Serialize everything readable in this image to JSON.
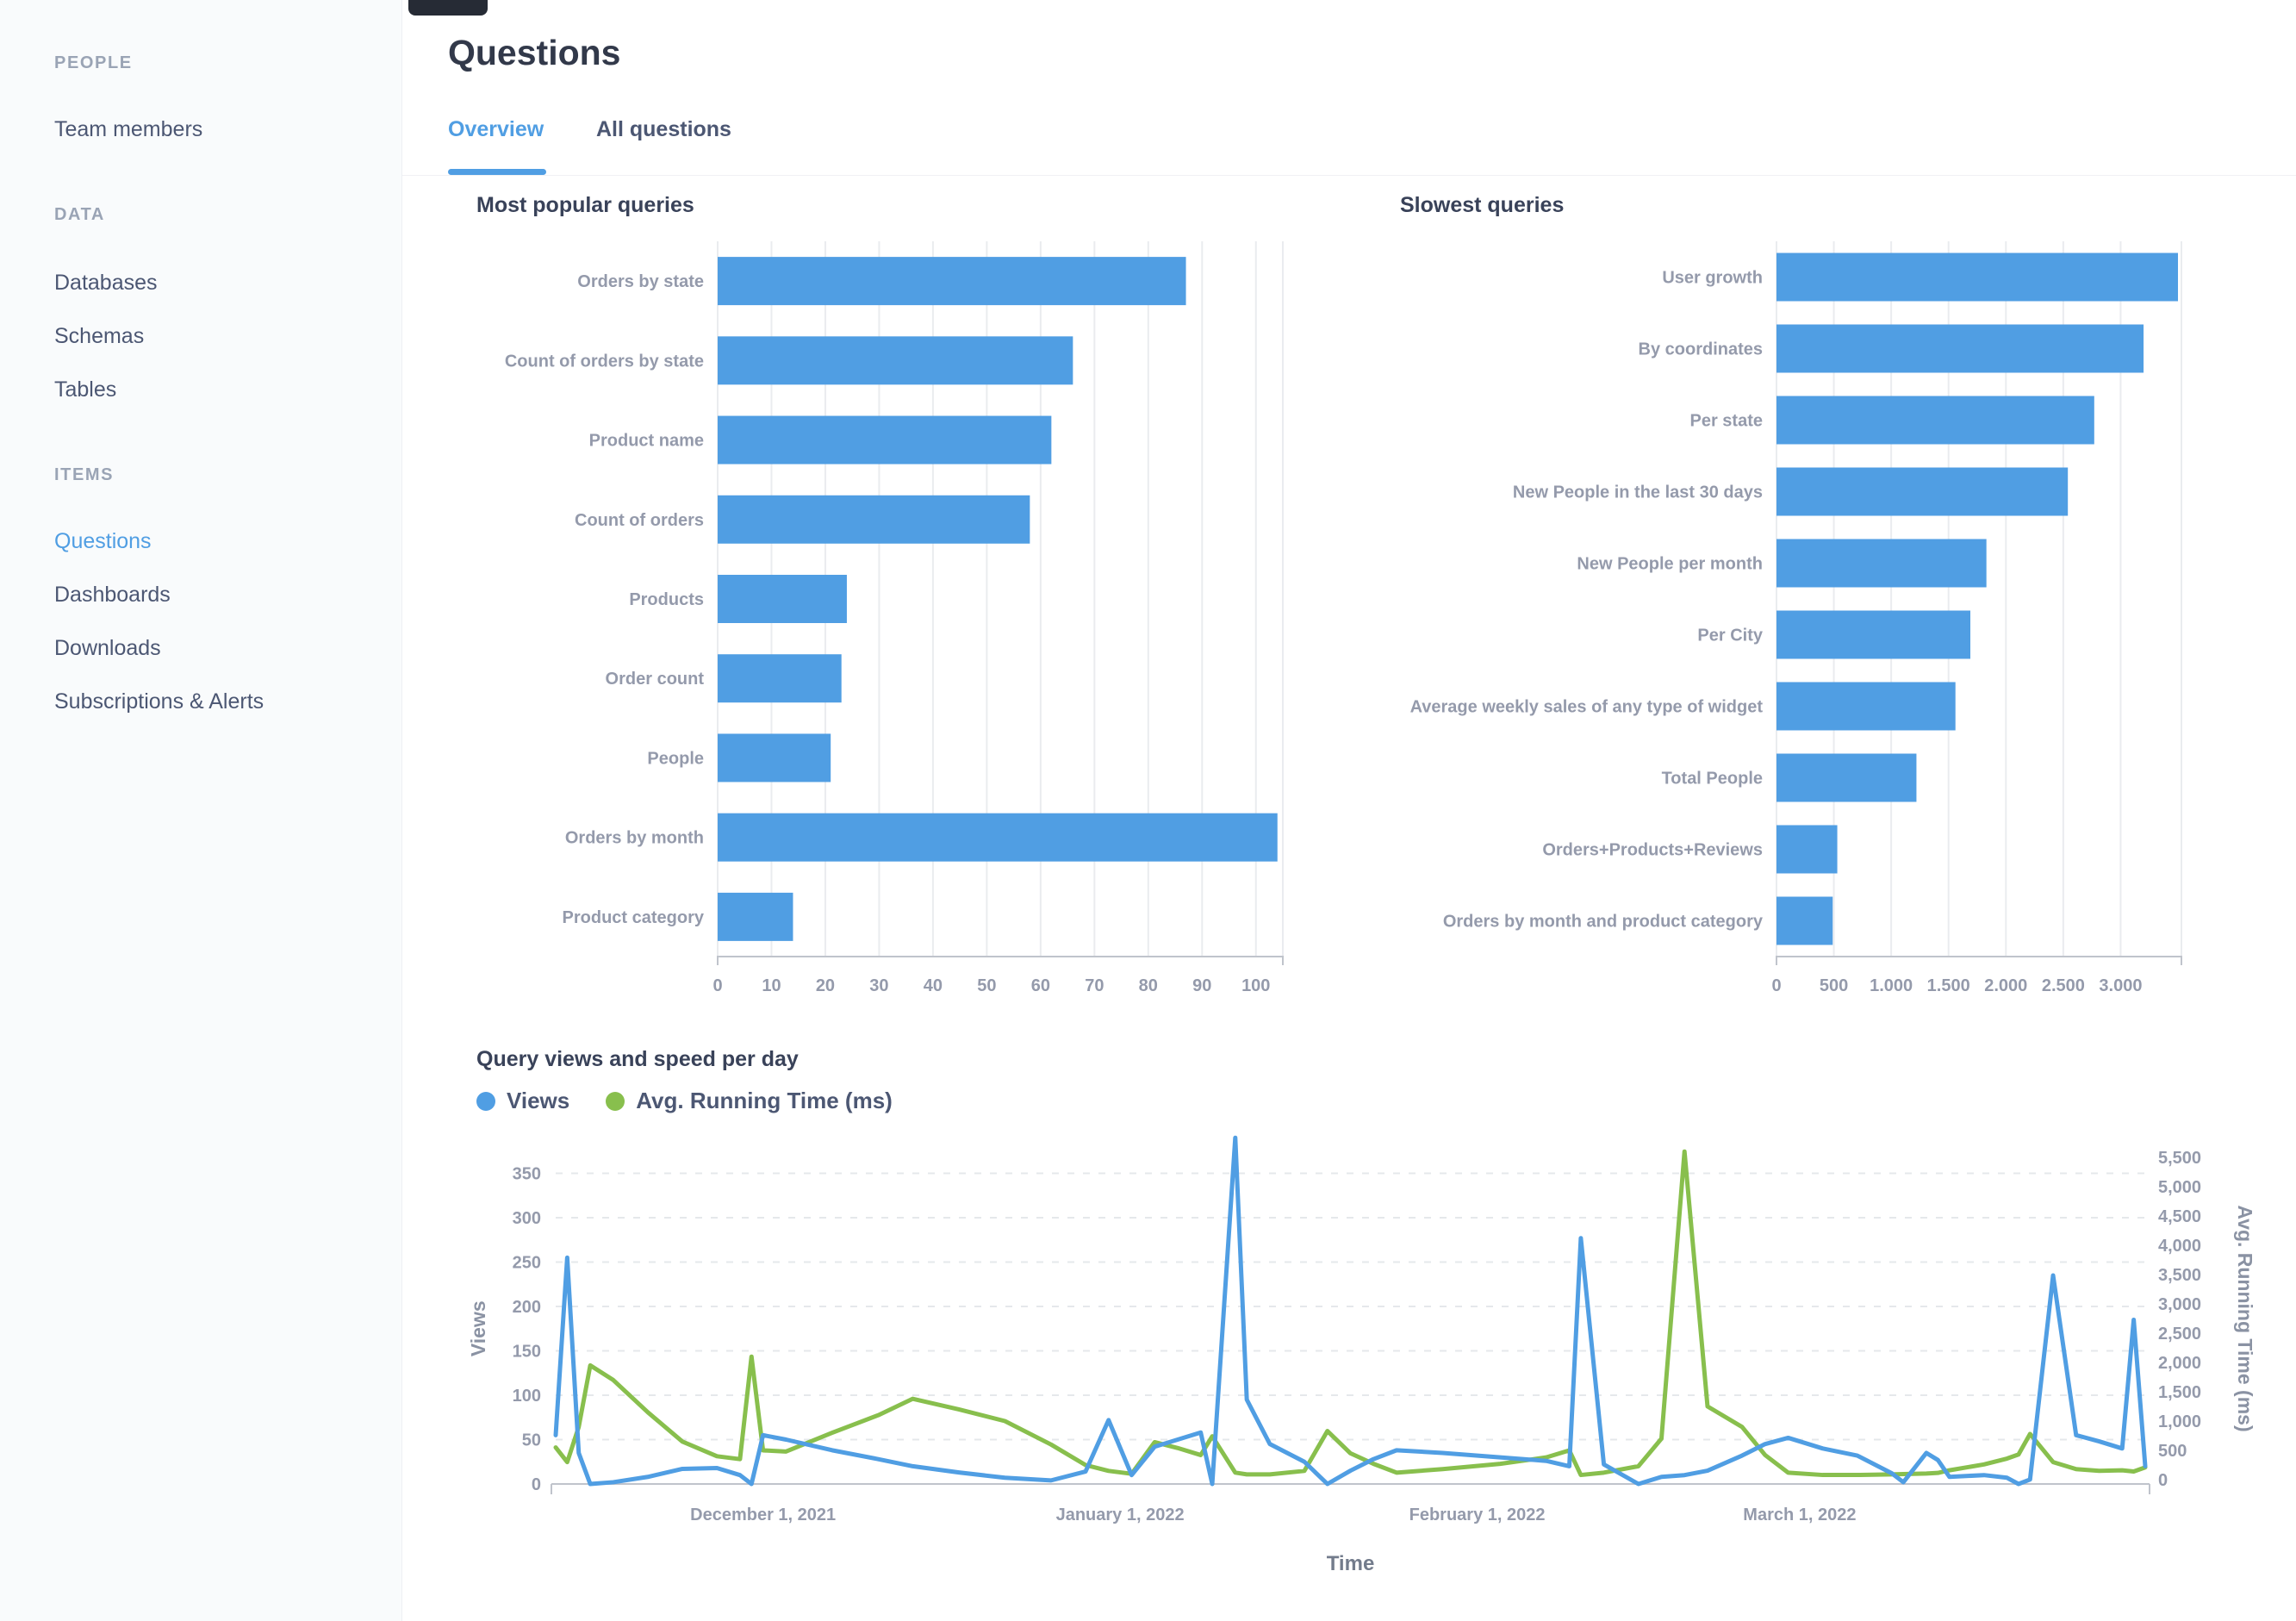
{
  "sidebar": {
    "sections": [
      {
        "title": "PEOPLE",
        "items": [
          {
            "label": "Team members",
            "active": false
          }
        ]
      },
      {
        "title": "DATA",
        "items": [
          {
            "label": "Databases",
            "active": false
          },
          {
            "label": "Schemas",
            "active": false
          },
          {
            "label": "Tables",
            "active": false
          }
        ]
      },
      {
        "title": "ITEMS",
        "items": [
          {
            "label": "Questions",
            "active": true
          },
          {
            "label": "Dashboards",
            "active": false
          },
          {
            "label": "Downloads",
            "active": false
          },
          {
            "label": "Subscriptions & Alerts",
            "active": false
          }
        ]
      }
    ]
  },
  "header": {
    "title": "Questions"
  },
  "tabs": [
    {
      "label": "Overview",
      "active": true
    },
    {
      "label": "All questions",
      "active": false
    }
  ],
  "colors": {
    "brand_blue": "#509EE3",
    "green": "#88BF4D",
    "label_gray": "#949AAB",
    "text_dark": "#4C5773",
    "grid": "#EAECEF",
    "axis": "#C0C4CC"
  },
  "chart_data": [
    {
      "type": "bar",
      "orientation": "horizontal",
      "title": "Most popular queries",
      "categories": [
        "Orders by state",
        "Count of orders by state",
        "Product name",
        "Count of orders",
        "Products",
        "Order count",
        "People",
        "Orders by month",
        "Product category"
      ],
      "values": [
        87,
        66,
        62,
        58,
        24,
        23,
        21,
        104,
        14
      ],
      "xlim": [
        0,
        105
      ],
      "xticks": [
        0,
        10,
        20,
        30,
        40,
        50,
        60,
        70,
        80,
        90,
        100
      ],
      "xtick_labels": [
        "0",
        "10",
        "20",
        "30",
        "40",
        "50",
        "60",
        "70",
        "80",
        "90",
        "100"
      ],
      "grid": true,
      "bar_color": "#509EE3"
    },
    {
      "type": "bar",
      "orientation": "horizontal",
      "title": "Slowest queries",
      "categories": [
        "User growth",
        "By coordinates",
        "Per state",
        "New People in the last 30 days",
        "New People per month",
        "Per City",
        "Average weekly sales of any type of widget",
        "Total People",
        "Orders+Products+Reviews",
        "Orders by month and product category"
      ],
      "values": [
        3500,
        3200,
        2770,
        2540,
        1830,
        1690,
        1560,
        1220,
        530,
        490
      ],
      "xlim": [
        0,
        3530
      ],
      "xticks": [
        0,
        500,
        1000,
        1500,
        2000,
        2500,
        3000
      ],
      "xtick_labels": [
        "0",
        "500",
        "1,000",
        "1,500",
        "2,000",
        "2,500",
        "3,000"
      ],
      "grid": true,
      "bar_color": "#509EE3"
    },
    {
      "type": "line",
      "title": "Query views and speed per day",
      "xlabel": "Time",
      "ylabel_left": "Views",
      "ylabel_right": "Avg. Running Time (ms)",
      "ylim_left": [
        0,
        350
      ],
      "ylim_right": [
        0,
        5500
      ],
      "yticks_left": [
        "0",
        "50",
        "100",
        "150",
        "200",
        "250",
        "300",
        "350"
      ],
      "yticks_right": [
        "0",
        "500",
        "1,000",
        "1,500",
        "2,000",
        "2,500",
        "3,000",
        "3,500",
        "4,000",
        "4,500",
        "5,000",
        "5,500"
      ],
      "x_tick_labels": [
        "December 1, 2021",
        "January 1, 2022",
        "February 1, 2022",
        "March 1, 2022"
      ],
      "x_tick_dates": [
        "2021-12-01",
        "2022-01-01",
        "2022-02-01",
        "2022-03-01"
      ],
      "legend_position": "top-left",
      "grid": "dashed-horizontal",
      "series": [
        {
          "name": "Views",
          "color": "#509EE3",
          "axis": "left"
        },
        {
          "name": "Avg. Running Time (ms)",
          "color": "#88BF4D",
          "axis": "right"
        }
      ],
      "points": [
        {
          "date": "2021-11-13",
          "views": 55,
          "avg_ms": 550
        },
        {
          "date": "2021-11-14",
          "views": 255,
          "avg_ms": 300
        },
        {
          "date": "2021-11-15",
          "views": 35,
          "avg_ms": 900
        },
        {
          "date": "2021-11-16",
          "views": 0,
          "avg_ms": 1950
        },
        {
          "date": "2021-11-18",
          "views": 2,
          "avg_ms": 1700
        },
        {
          "date": "2021-11-21",
          "views": 8,
          "avg_ms": 1150
        },
        {
          "date": "2021-11-24",
          "views": 17,
          "avg_ms": 650
        },
        {
          "date": "2021-11-27",
          "views": 18,
          "avg_ms": 400
        },
        {
          "date": "2021-11-29",
          "views": 10,
          "avg_ms": 350
        },
        {
          "date": "2021-11-30",
          "views": 0,
          "avg_ms": 2100
        },
        {
          "date": "2021-12-01",
          "views": 55,
          "avg_ms": 500
        },
        {
          "date": "2021-12-03",
          "views": 50,
          "avg_ms": 480
        },
        {
          "date": "2021-12-07",
          "views": 38,
          "avg_ms": 800
        },
        {
          "date": "2021-12-11",
          "views": 28,
          "avg_ms": 1100
        },
        {
          "date": "2021-12-14",
          "views": 20,
          "avg_ms": 1380
        },
        {
          "date": "2021-12-18",
          "views": 13,
          "avg_ms": 1200
        },
        {
          "date": "2021-12-22",
          "views": 7,
          "avg_ms": 1000
        },
        {
          "date": "2021-12-26",
          "views": 4,
          "avg_ms": 600
        },
        {
          "date": "2021-12-29",
          "views": 14,
          "avg_ms": 250
        },
        {
          "date": "2021-12-31",
          "views": 72,
          "avg_ms": 150
        },
        {
          "date": "2022-01-02",
          "views": 10,
          "avg_ms": 100
        },
        {
          "date": "2022-01-04",
          "views": 42,
          "avg_ms": 640
        },
        {
          "date": "2022-01-06",
          "views": 50,
          "avg_ms": 540
        },
        {
          "date": "2022-01-08",
          "views": 58,
          "avg_ms": 420
        },
        {
          "date": "2022-01-09",
          "views": 0,
          "avg_ms": 740
        },
        {
          "date": "2022-01-11",
          "views": 390,
          "avg_ms": 120
        },
        {
          "date": "2022-01-12",
          "views": 95,
          "avg_ms": 90
        },
        {
          "date": "2022-01-14",
          "views": 45,
          "avg_ms": 90
        },
        {
          "date": "2022-01-17",
          "views": 25,
          "avg_ms": 150
        },
        {
          "date": "2022-01-19",
          "views": 0,
          "avg_ms": 830
        },
        {
          "date": "2022-01-21",
          "views": 15,
          "avg_ms": 450
        },
        {
          "date": "2022-01-23",
          "views": 28,
          "avg_ms": 270
        },
        {
          "date": "2022-01-25",
          "views": 38,
          "avg_ms": 120
        },
        {
          "date": "2022-01-29",
          "views": 35,
          "avg_ms": 180
        },
        {
          "date": "2022-02-03",
          "views": 30,
          "avg_ms": 270
        },
        {
          "date": "2022-02-07",
          "views": 26,
          "avg_ms": 380
        },
        {
          "date": "2022-02-09",
          "views": 20,
          "avg_ms": 500
        },
        {
          "date": "2022-02-10",
          "views": 277,
          "avg_ms": 80
        },
        {
          "date": "2022-02-12",
          "views": 22,
          "avg_ms": 120
        },
        {
          "date": "2022-02-15",
          "views": 0,
          "avg_ms": 230
        },
        {
          "date": "2022-02-17",
          "views": 8,
          "avg_ms": 700
        },
        {
          "date": "2022-02-19",
          "views": 10,
          "avg_ms": 5600
        },
        {
          "date": "2022-02-21",
          "views": 15,
          "avg_ms": 1250
        },
        {
          "date": "2022-02-24",
          "views": 32,
          "avg_ms": 900
        },
        {
          "date": "2022-02-26",
          "views": 45,
          "avg_ms": 420
        },
        {
          "date": "2022-02-28",
          "views": 52,
          "avg_ms": 120
        },
        {
          "date": "2022-03-03",
          "views": 40,
          "avg_ms": 80
        },
        {
          "date": "2022-03-06",
          "views": 32,
          "avg_ms": 80
        },
        {
          "date": "2022-03-09",
          "views": 12,
          "avg_ms": 90
        },
        {
          "date": "2022-03-10",
          "views": 2,
          "avg_ms": 95
        },
        {
          "date": "2022-03-12",
          "views": 35,
          "avg_ms": 105
        },
        {
          "date": "2022-03-13",
          "views": 27,
          "avg_ms": 115
        },
        {
          "date": "2022-03-14",
          "views": 8,
          "avg_ms": 160
        },
        {
          "date": "2022-03-17",
          "views": 10,
          "avg_ms": 260
        },
        {
          "date": "2022-03-19",
          "views": 7,
          "avg_ms": 360
        },
        {
          "date": "2022-03-20",
          "views": 0,
          "avg_ms": 430
        },
        {
          "date": "2022-03-21",
          "views": 5,
          "avg_ms": 780
        },
        {
          "date": "2022-03-23",
          "views": 235,
          "avg_ms": 300
        },
        {
          "date": "2022-03-25",
          "views": 55,
          "avg_ms": 180
        },
        {
          "date": "2022-03-27",
          "views": 48,
          "avg_ms": 150
        },
        {
          "date": "2022-03-29",
          "views": 40,
          "avg_ms": 160
        },
        {
          "date": "2022-03-30",
          "views": 185,
          "avg_ms": 140
        },
        {
          "date": "2022-03-31",
          "views": 20,
          "avg_ms": 210
        }
      ]
    }
  ]
}
